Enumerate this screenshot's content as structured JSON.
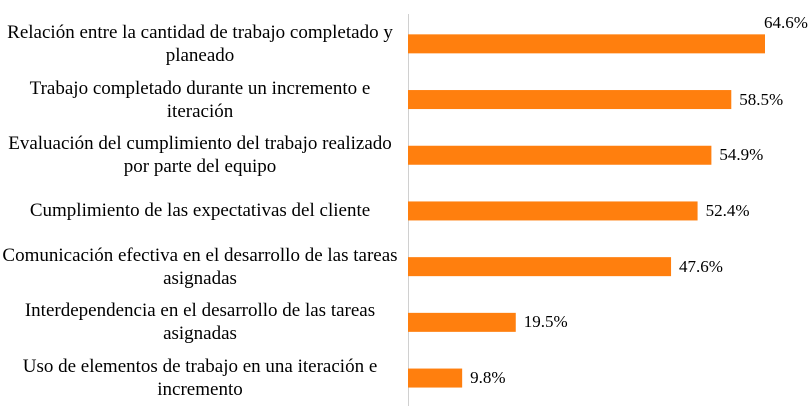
{
  "chart_data": {
    "type": "bar",
    "orientation": "horizontal",
    "color": "#ff7f0e",
    "categories": [
      "Relación entre la cantidad de trabajo completado y planeado",
      "Trabajo completado durante un incremento e iteración",
      "Evaluación del cumplimiento del trabajo realizado por parte del equipo",
      "Cumplimiento de las expectativas del cliente",
      "Comunicación efectiva en el desarrollo de las tareas asignadas",
      "Interdependencia en el desarrollo de las tareas asignadas",
      "Uso de elementos de trabajo en una iteración e incremento"
    ],
    "values": [
      64.6,
      58.5,
      54.9,
      52.4,
      47.6,
      19.5,
      9.8
    ],
    "value_labels": [
      "64.6%",
      "58.5%",
      "54.9%",
      "52.4%",
      "47.6%",
      "19.5%",
      "9.8%"
    ]
  }
}
